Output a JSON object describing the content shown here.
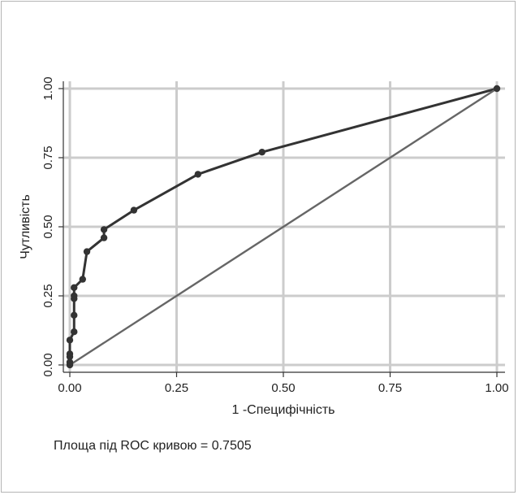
{
  "chart_data": {
    "type": "line",
    "title": "",
    "xlabel": "1 -Специфічність",
    "ylabel": "Чутливість",
    "xlim": [
      0,
      1
    ],
    "ylim": [
      0,
      1
    ],
    "grid": true,
    "x_ticks": [
      "0.00",
      "0.25",
      "0.50",
      "0.75",
      "1.00"
    ],
    "y_ticks": [
      "0.00",
      "0.25",
      "0.50",
      "0.75",
      "1.00"
    ],
    "tick_values": [
      0,
      0.25,
      0.5,
      0.75,
      1
    ],
    "series": [
      {
        "type": "line",
        "color": "#333333",
        "markers": true,
        "x": [
          0,
          0,
          0,
          0,
          0,
          0.01,
          0.01,
          0.01,
          0.01,
          0.01,
          0.03,
          0.04,
          0.08,
          0.08,
          0.15,
          0.3,
          0.45,
          1.0
        ],
        "y": [
          0,
          0.01,
          0.03,
          0.04,
          0.09,
          0.12,
          0.18,
          0.24,
          0.25,
          0.28,
          0.31,
          0.41,
          0.46,
          0.49,
          0.56,
          0.69,
          0.77,
          1.0
        ]
      },
      {
        "type": "reference-line",
        "color": "#666666",
        "markers": false,
        "x": [
          0,
          1
        ],
        "y": [
          0,
          1
        ]
      }
    ],
    "colors": {
      "grid": "#cccccc",
      "curve": "#333333",
      "reference": "#666666"
    }
  },
  "annotation": "Площа під ROC кривою = 0.7505"
}
